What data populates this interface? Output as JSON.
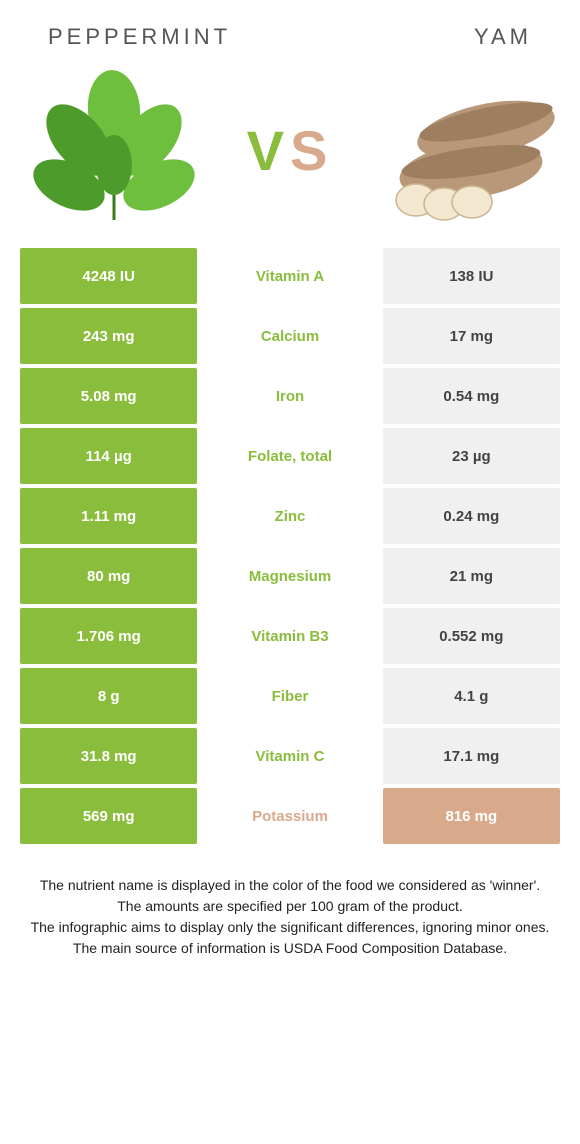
{
  "header": {
    "left": "PEPPERMINT",
    "right": "YAM"
  },
  "vs": {
    "v": "V",
    "s": "S"
  },
  "colors": {
    "peppermint": "#8bbd3c",
    "yam": "#d9a98c",
    "cell_right_bg": "#f0f0f0",
    "cell_right_winner_bg": "#d9a98c",
    "cell_right_winner_text": "#ffffff"
  },
  "rows": [
    {
      "left": "4248 IU",
      "mid": "Vitamin A",
      "right": "138 IU",
      "winner": "left"
    },
    {
      "left": "243 mg",
      "mid": "Calcium",
      "right": "17 mg",
      "winner": "left"
    },
    {
      "left": "5.08 mg",
      "mid": "Iron",
      "right": "0.54 mg",
      "winner": "left"
    },
    {
      "left": "114 µg",
      "mid": "Folate, total",
      "right": "23 µg",
      "winner": "left"
    },
    {
      "left": "1.11 mg",
      "mid": "Zinc",
      "right": "0.24 mg",
      "winner": "left"
    },
    {
      "left": "80 mg",
      "mid": "Magnesium",
      "right": "21 mg",
      "winner": "left"
    },
    {
      "left": "1.706 mg",
      "mid": "Vitamin B3",
      "right": "0.552 mg",
      "winner": "left"
    },
    {
      "left": "8 g",
      "mid": "Fiber",
      "right": "4.1 g",
      "winner": "left"
    },
    {
      "left": "31.8 mg",
      "mid": "Vitamin C",
      "right": "17.1 mg",
      "winner": "left"
    },
    {
      "left": "569 mg",
      "mid": "Potassium",
      "right": "816 mg",
      "winner": "right"
    }
  ],
  "footnote": {
    "l1": "The nutrient name is displayed in the color of the food we considered as 'winner'.",
    "l2": "The amounts are specified per 100 gram of the product.",
    "l3": "The infographic aims to display only the significant differences, ignoring minor ones.",
    "l4": "The main source of information is USDA Food Composition Database."
  }
}
